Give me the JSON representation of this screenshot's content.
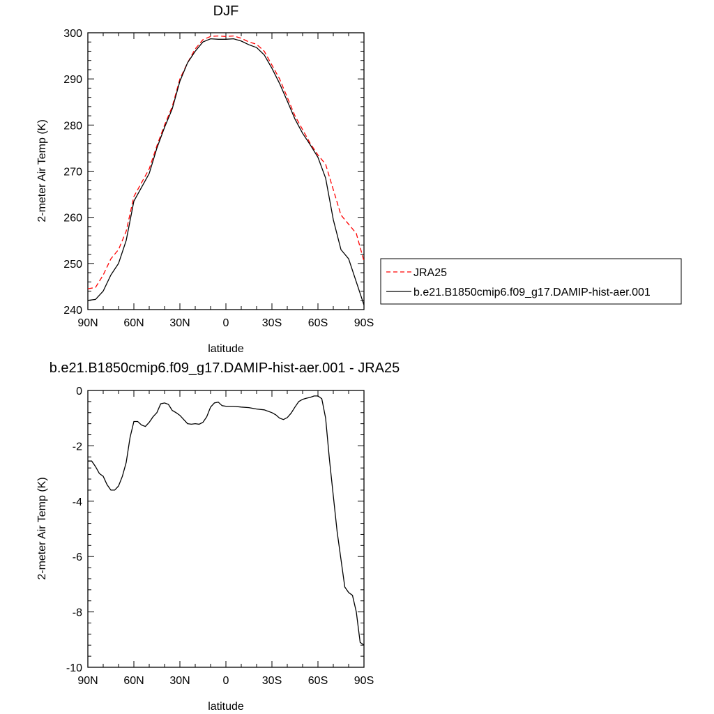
{
  "chart_data": [
    {
      "type": "line",
      "title": "DJF",
      "xlabel": "latitude",
      "ylabel": "2-meter Air Temp (K)",
      "xlim": [
        90,
        -90
      ],
      "ylim": [
        240,
        300
      ],
      "xticks": [
        90,
        60,
        30,
        0,
        -30,
        -60,
        -90
      ],
      "xtick_labels": [
        "90N",
        "60N",
        "30N",
        "0",
        "30S",
        "60S",
        "90S"
      ],
      "yticks": [
        240,
        250,
        260,
        270,
        280,
        290,
        300
      ],
      "ytick_labels": [
        "240",
        "250",
        "260",
        "270",
        "280",
        "290",
        "300"
      ],
      "legend_position": "right",
      "series": [
        {
          "name": "JRA25",
          "color": "#ff0000",
          "dash": "dashed",
          "x": [
            90,
            85,
            80,
            75,
            70,
            65,
            60,
            55,
            50,
            45,
            40,
            35,
            30,
            25,
            20,
            15,
            10,
            5,
            0,
            -5,
            -10,
            -15,
            -20,
            -25,
            -30,
            -35,
            -40,
            -45,
            -50,
            -55,
            -60,
            -65,
            -70,
            -75,
            -80,
            -85,
            -90
          ],
          "values": [
            244.5,
            244.8,
            247.5,
            251.0,
            253.0,
            257.0,
            264.5,
            267.5,
            270.5,
            275.5,
            280.0,
            284.0,
            290.0,
            293.5,
            296.5,
            298.5,
            299.2,
            299.3,
            299.2,
            299.3,
            298.8,
            298.0,
            297.5,
            296.0,
            293.0,
            290.0,
            286.0,
            282.0,
            279.0,
            276.0,
            273.5,
            271.5,
            266.0,
            260.5,
            258.5,
            256.5,
            250.5
          ]
        },
        {
          "name": "b.e21.B1850cmip6.f09_g17.DAMIP-hist-aer.001",
          "color": "#000000",
          "dash": "solid",
          "x": [
            90,
            85,
            80,
            75,
            70,
            65,
            60,
            55,
            50,
            45,
            40,
            35,
            30,
            25,
            20,
            15,
            10,
            5,
            0,
            -5,
            -10,
            -15,
            -20,
            -25,
            -30,
            -35,
            -40,
            -45,
            -50,
            -55,
            -60,
            -65,
            -70,
            -75,
            -80,
            -85,
            -90
          ],
          "values": [
            242.0,
            242.2,
            244.0,
            247.5,
            250.0,
            255.0,
            263.5,
            266.5,
            269.5,
            275.0,
            279.5,
            283.5,
            289.5,
            293.5,
            296.0,
            298.0,
            298.7,
            298.6,
            298.6,
            298.7,
            298.2,
            297.4,
            296.8,
            295.2,
            292.3,
            289.0,
            285.2,
            281.3,
            278.2,
            275.7,
            273.0,
            268.5,
            259.5,
            253.0,
            251.0,
            246.0,
            241.0
          ]
        }
      ]
    },
    {
      "type": "line",
      "title": "b.e21.B1850cmip6.f09_g17.DAMIP-hist-aer.001 - JRA25",
      "xlabel": "latitude",
      "ylabel": "2-meter Air Temp (K)",
      "xlim": [
        90,
        -90
      ],
      "ylim": [
        -10,
        0
      ],
      "xticks": [
        90,
        60,
        30,
        0,
        -30,
        -60,
        -90
      ],
      "xtick_labels": [
        "90N",
        "60N",
        "30N",
        "0",
        "30S",
        "60S",
        "90S"
      ],
      "yticks": [
        -10,
        -8,
        -6,
        -4,
        -2,
        0
      ],
      "ytick_labels": [
        "-10",
        "-8",
        "-6",
        "-4",
        "-2",
        "0"
      ],
      "series": [
        {
          "color": "#000000",
          "dash": "solid",
          "x": [
            90,
            87.5,
            85,
            82.5,
            80,
            77.5,
            75,
            72.5,
            70,
            67.5,
            65,
            62.5,
            60,
            57.5,
            55,
            52.5,
            50,
            47.5,
            45,
            42.5,
            40,
            37.5,
            35,
            32.5,
            30,
            27.5,
            25,
            22.5,
            20,
            17.5,
            15,
            12.5,
            10,
            7.5,
            5,
            2.5,
            0,
            -5,
            -10,
            -15,
            -20,
            -25,
            -30,
            -32.5,
            -35,
            -37.5,
            -40,
            -42.5,
            -45,
            -47.5,
            -50,
            -52.5,
            -55,
            -57.5,
            -60,
            -62.5,
            -65,
            -67.5,
            -70,
            -72.5,
            -75,
            -77.5,
            -80,
            -82.5,
            -85,
            -87.5,
            -90
          ],
          "values": [
            -2.55,
            -2.55,
            -2.75,
            -3.0,
            -3.1,
            -3.4,
            -3.6,
            -3.6,
            -3.45,
            -3.1,
            -2.6,
            -1.7,
            -1.12,
            -1.12,
            -1.25,
            -1.3,
            -1.15,
            -0.95,
            -0.8,
            -0.48,
            -0.45,
            -0.5,
            -0.72,
            -0.8,
            -0.9,
            -1.05,
            -1.2,
            -1.22,
            -1.2,
            -1.22,
            -1.15,
            -0.95,
            -0.6,
            -0.45,
            -0.42,
            -0.55,
            -0.57,
            -0.57,
            -0.6,
            -0.62,
            -0.67,
            -0.7,
            -0.8,
            -0.88,
            -1.0,
            -1.05,
            -0.98,
            -0.82,
            -0.6,
            -0.4,
            -0.32,
            -0.28,
            -0.25,
            -0.2,
            -0.2,
            -0.3,
            -1.0,
            -2.5,
            -3.8,
            -5.1,
            -6.1,
            -7.1,
            -7.3,
            -7.4,
            -8.0,
            -9.1,
            -9.2
          ]
        }
      ]
    }
  ]
}
